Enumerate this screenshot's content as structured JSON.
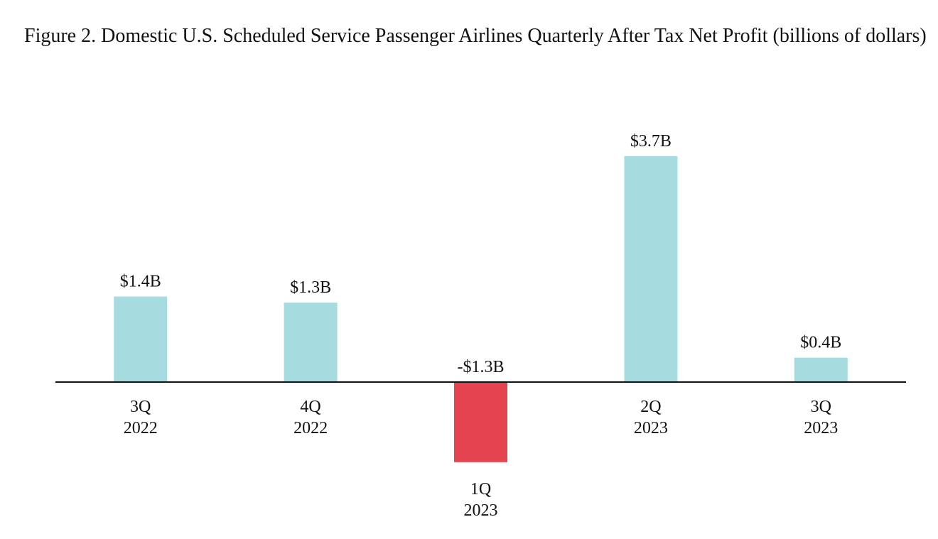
{
  "chart_data": {
    "type": "bar",
    "title": "Figure 2. Domestic U.S. Scheduled Service Passenger Airlines Quarterly After Tax Net Profit (billions of dollars)",
    "xlabel": "",
    "ylabel": "",
    "categories": [
      {
        "quarter": "3Q",
        "year": "2022"
      },
      {
        "quarter": "4Q",
        "year": "2022"
      },
      {
        "quarter": "1Q",
        "year": "2023"
      },
      {
        "quarter": "2Q",
        "year": "2023"
      },
      {
        "quarter": "3Q",
        "year": "2023"
      }
    ],
    "values": [
      1.4,
      1.3,
      -1.3,
      3.7,
      0.4
    ],
    "data_labels": [
      "$1.4B",
      "$1.3B",
      "-$1.3B",
      "$3.7B",
      "$0.4B"
    ],
    "ylim": [
      -1.3,
      3.7
    ],
    "grid": false,
    "legend": "none",
    "colors": {
      "positive": "#a6dcdf",
      "negative": "#e5434f",
      "axis": "#111111"
    }
  }
}
